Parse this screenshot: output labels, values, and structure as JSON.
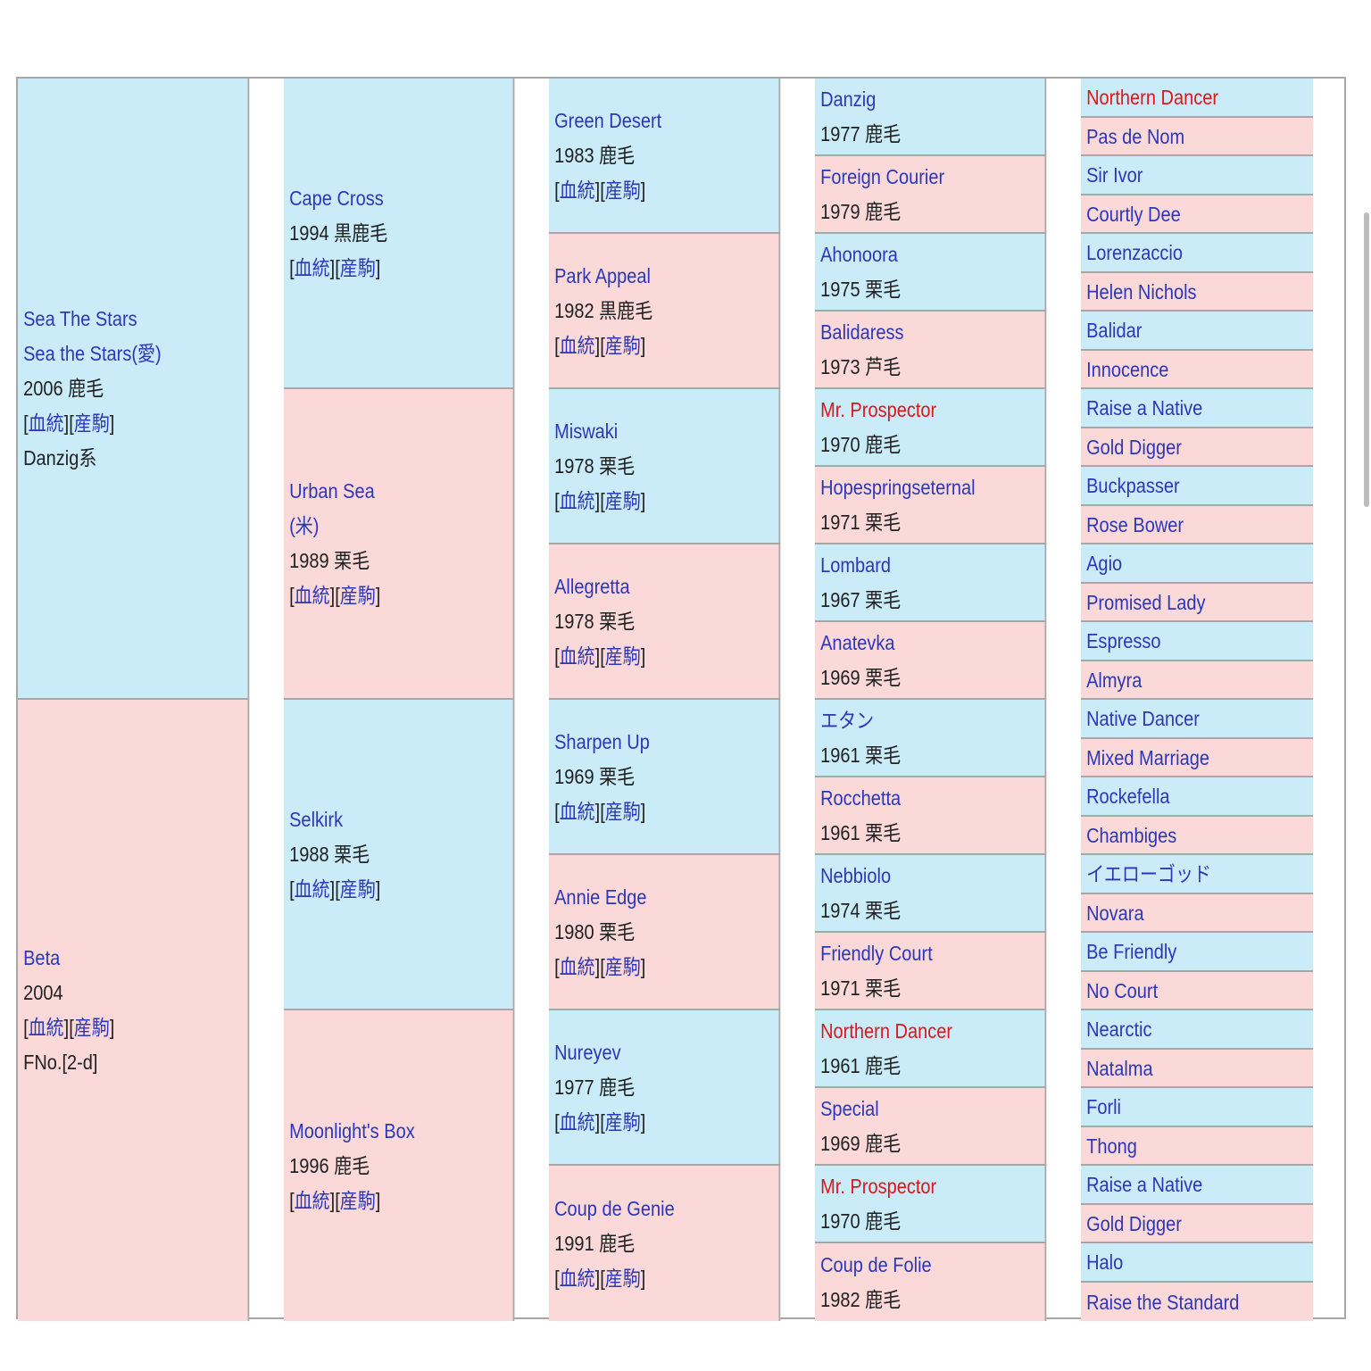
{
  "link_labels": {
    "pedigree": "血統",
    "progeny": "産駒"
  },
  "sire": {
    "name_en": "Sea The Stars",
    "name_ja": "Sea the Stars(愛)",
    "info": "2006 鹿毛",
    "line": "Danzig系",
    "sire": {
      "name": "Cape Cross",
      "info": "1994 黒鹿毛",
      "sire": {
        "name": "Green Desert",
        "info": "1983 鹿毛",
        "sire": {
          "name": "Danzig",
          "info": "1977 鹿毛",
          "sire": "Northern Dancer",
          "dam": "Pas de Nom"
        },
        "dam": {
          "name": "Foreign Courier",
          "info": "1979 鹿毛",
          "sire": "Sir Ivor",
          "dam": "Courtly Dee"
        }
      },
      "dam": {
        "name": "Park Appeal",
        "info": "1982 黒鹿毛",
        "sire": {
          "name": "Ahonoora",
          "info": "1975 栗毛",
          "sire": "Lorenzaccio",
          "dam": "Helen Nichols"
        },
        "dam": {
          "name": "Balidaress",
          "info": "1973 芦毛",
          "sire": "Balidar",
          "dam": "Innocence"
        }
      }
    },
    "dam": {
      "name": "Urban Sea",
      "name2": "(米)",
      "info": "1989 栗毛",
      "sire": {
        "name": "Miswaki",
        "info": "1978 栗毛",
        "sire": {
          "name": "Mr. Prospector",
          "info": "1970 鹿毛",
          "sire": "Raise a Native",
          "dam": "Gold Digger"
        },
        "dam": {
          "name": "Hopespringseternal",
          "info": "1971 栗毛",
          "sire": "Buckpasser",
          "dam": "Rose Bower"
        }
      },
      "dam": {
        "name": "Allegretta",
        "info": "1978 栗毛",
        "sire": {
          "name": "Lombard",
          "info": "1967 栗毛",
          "sire": "Agio",
          "dam": "Promised Lady"
        },
        "dam": {
          "name": "Anatevka",
          "info": "1969 栗毛",
          "sire": "Espresso",
          "dam": "Almyra"
        }
      }
    }
  },
  "dam": {
    "name": "Beta",
    "info": "2004",
    "family": "FNo.[2-d]",
    "sire": {
      "name": "Selkirk",
      "info": "1988 栗毛",
      "sire": {
        "name": "Sharpen Up",
        "info": "1969 栗毛",
        "sire": {
          "name": "エタン",
          "info": "1961 栗毛",
          "sire": "Native Dancer",
          "dam": "Mixed Marriage"
        },
        "dam": {
          "name": "Rocchetta",
          "info": "1961 栗毛",
          "sire": "Rockefella",
          "dam": "Chambiges"
        }
      },
      "dam": {
        "name": "Annie Edge",
        "info": "1980 栗毛",
        "sire": {
          "name": "Nebbiolo",
          "info": "1974 栗毛",
          "sire": "イエローゴッド",
          "dam": "Novara"
        },
        "dam": {
          "name": "Friendly Court",
          "info": "1971 栗毛",
          "sire": "Be Friendly",
          "dam": "No Court"
        }
      }
    },
    "dam": {
      "name": "Moonlight's Box",
      "info": "1996 鹿毛",
      "sire": {
        "name": "Nureyev",
        "info": "1977 鹿毛",
        "sire": {
          "name": "Northern Dancer",
          "info": "1961 鹿毛",
          "sire": "Nearctic",
          "dam": "Natalma"
        },
        "dam": {
          "name": "Special",
          "info": "1969 鹿毛",
          "sire": "Forli",
          "dam": "Thong"
        }
      },
      "dam": {
        "name": "Coup de Genie",
        "info": "1991 鹿毛",
        "sire": {
          "name": "Mr. Prospector",
          "info": "1970 鹿毛",
          "sire": "Raise a Native",
          "dam": "Gold Digger"
        },
        "dam": {
          "name": "Coup de Folie",
          "info": "1982 鹿毛",
          "sire": "Halo",
          "dam": "Raise the Standard"
        }
      }
    }
  },
  "highlight_color": "#e0141b",
  "link_color": "#2c37b8",
  "sire_bg": "#c9ecf8",
  "dam_bg": "#fbd9d8"
}
